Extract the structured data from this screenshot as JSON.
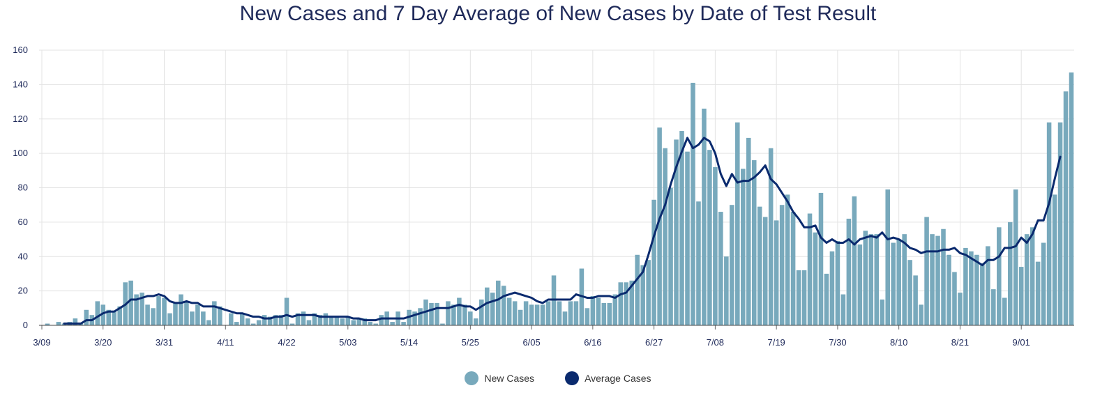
{
  "chart_data": {
    "type": "bar",
    "title": "New Cases and 7 Day Average of New Cases by Date of Test Result",
    "xlabel": "",
    "ylabel": "",
    "ylim": [
      0,
      160
    ],
    "yticks": [
      "0",
      "20",
      "40",
      "60",
      "80",
      "100",
      "120",
      "140",
      "160"
    ],
    "xticks": [
      "3/09",
      "3/20",
      "3/31",
      "4/11",
      "4/22",
      "5/03",
      "5/14",
      "5/25",
      "6/05",
      "6/16",
      "6/27",
      "7/08",
      "7/19",
      "7/30",
      "8/10",
      "8/21",
      "9/01"
    ],
    "tick_interval_days": 11,
    "legend_position": "bottom-center",
    "series": [
      {
        "name": "New Cases",
        "kind": "bar",
        "color": "#78a9bc",
        "values": [
          0,
          1,
          0,
          2,
          1,
          2,
          4,
          1,
          9,
          6,
          14,
          12,
          9,
          8,
          11,
          25,
          26,
          18,
          19,
          12,
          10,
          17,
          16,
          7,
          13,
          18,
          14,
          8,
          12,
          8,
          3,
          14,
          11,
          0,
          7,
          2,
          7,
          4,
          1,
          3,
          6,
          5,
          6,
          6,
          16,
          1,
          7,
          8,
          3,
          7,
          6,
          7,
          5,
          5,
          4,
          5,
          3,
          4,
          4,
          2,
          1,
          6,
          8,
          2,
          8,
          2,
          9,
          8,
          10,
          15,
          13,
          13,
          1,
          14,
          12,
          16,
          12,
          8,
          4,
          15,
          22,
          19,
          26,
          23,
          16,
          14,
          9,
          14,
          12,
          12,
          12,
          14,
          29,
          14,
          8,
          14,
          14,
          33,
          10,
          17,
          16,
          13,
          13,
          18,
          25,
          25,
          26,
          41,
          35,
          38,
          73,
          115,
          103,
          80,
          108,
          113,
          101,
          141,
          72,
          126,
          102,
          92,
          66,
          40,
          70,
          118,
          91,
          109,
          96,
          69,
          63,
          103,
          61,
          70,
          76,
          66,
          32,
          32,
          65,
          54,
          77,
          30,
          43,
          49,
          18,
          62,
          75,
          47,
          55,
          53,
          53,
          15,
          79,
          48,
          50,
          53,
          38,
          29,
          12,
          63,
          53,
          52,
          56,
          41,
          31,
          19,
          45,
          43,
          41,
          36,
          46,
          21,
          57,
          16,
          60,
          79,
          34,
          53,
          57,
          37,
          48,
          118,
          76,
          118,
          136,
          147
        ],
        "day_labels_source": "first bar = 3/09, one bar per day"
      },
      {
        "name": "Average Cases",
        "kind": "line",
        "color": "#0a2a6e",
        "values": [
          null,
          null,
          null,
          null,
          1,
          1,
          1,
          1,
          3,
          3,
          5,
          7,
          8,
          8,
          10,
          12,
          15,
          15,
          16,
          17,
          17,
          18,
          17,
          14,
          13,
          13,
          14,
          13,
          13,
          11,
          11,
          11,
          10,
          9,
          8,
          7,
          7,
          6,
          5,
          5,
          4,
          4,
          5,
          5,
          6,
          5,
          6,
          6,
          6,
          6,
          5,
          5,
          5,
          5,
          5,
          5,
          4,
          4,
          3,
          3,
          3,
          4,
          4,
          4,
          4,
          4,
          5,
          6,
          7,
          8,
          9,
          10,
          10,
          10,
          11,
          12,
          11,
          11,
          9,
          11,
          13,
          14,
          15,
          17,
          18,
          19,
          18,
          17,
          16,
          14,
          13,
          15,
          15,
          15,
          15,
          15,
          18,
          17,
          16,
          16,
          17,
          17,
          17,
          16,
          18,
          19,
          23,
          27,
          31,
          41,
          52,
          62,
          70,
          82,
          92,
          101,
          109,
          103,
          105,
          109,
          107,
          100,
          88,
          81,
          88,
          83,
          84,
          84,
          86,
          89,
          93,
          85,
          82,
          77,
          72,
          66,
          62,
          57,
          57,
          58,
          51,
          48,
          50,
          48,
          48,
          50,
          47,
          50,
          51,
          52,
          51,
          54,
          50,
          51,
          50,
          48,
          45,
          44,
          42,
          43,
          43,
          43,
          44,
          44,
          45,
          42,
          41,
          39,
          37,
          35,
          38,
          38,
          40,
          45,
          45,
          46,
          51,
          48,
          53,
          61,
          61,
          71,
          85,
          98
        ]
      }
    ]
  }
}
